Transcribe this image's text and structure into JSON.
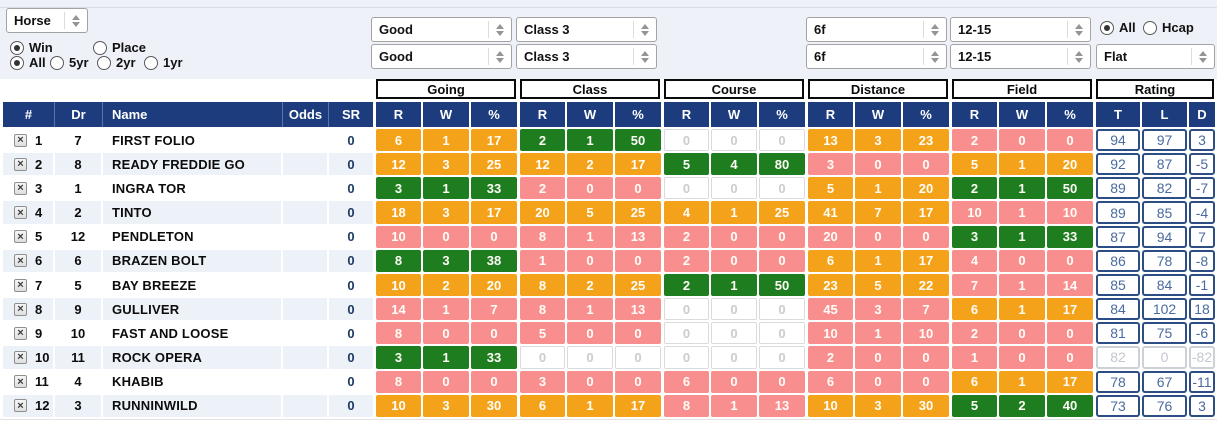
{
  "filters": {
    "horse_select": {
      "value": "Horse"
    },
    "bet_type": {
      "options": [
        "Win",
        "Place"
      ],
      "selected": "Win"
    },
    "age": {
      "options": [
        "All",
        "5yr",
        "2yr",
        "1yr"
      ],
      "selected": "All"
    },
    "going_top": "Good",
    "going_bottom": "Good",
    "class_top": "Class 3",
    "class_bottom": "Class 3",
    "distance_top": "6f",
    "distance_bottom": "6f",
    "field_top": "12-15",
    "field_bottom": "12-15",
    "race_code": {
      "options": [
        "All",
        "Hcap"
      ],
      "selected": "All"
    },
    "race_type": "Flat"
  },
  "table": {
    "remove_glyph": "×",
    "left_headers": [
      "#",
      "Dr",
      "Name",
      "Odds",
      "SR"
    ],
    "groups": [
      {
        "label": "Going",
        "cols": [
          "R",
          "W",
          "%"
        ]
      },
      {
        "label": "Class",
        "cols": [
          "R",
          "W",
          "%"
        ]
      },
      {
        "label": "Course",
        "cols": [
          "R",
          "W",
          "%"
        ]
      },
      {
        "label": "Distance",
        "cols": [
          "R",
          "W",
          "%"
        ]
      },
      {
        "label": "Field",
        "cols": [
          "R",
          "W",
          "%"
        ]
      },
      {
        "label": "Rating",
        "cols": [
          "T",
          "L",
          "D"
        ]
      }
    ],
    "rows": [
      {
        "num": "1",
        "dr": "7",
        "name": "FIRST FOLIO",
        "odds": "",
        "sr": "0",
        "stats": [
          {
            "r": "6",
            "w": "1",
            "pct": "17",
            "color": "orange"
          },
          {
            "r": "2",
            "w": "1",
            "pct": "50",
            "color": "green"
          },
          {
            "r": "0",
            "w": "0",
            "pct": "0",
            "color": "empty"
          },
          {
            "r": "13",
            "w": "3",
            "pct": "23",
            "color": "orange"
          },
          {
            "r": "2",
            "w": "0",
            "pct": "0",
            "color": "pink"
          }
        ],
        "rating": {
          "t": "94",
          "l": "97",
          "d": "3",
          "muted": false
        }
      },
      {
        "num": "2",
        "dr": "8",
        "name": "READY FREDDIE GO",
        "odds": "",
        "sr": "0",
        "stats": [
          {
            "r": "12",
            "w": "3",
            "pct": "25",
            "color": "orange"
          },
          {
            "r": "12",
            "w": "2",
            "pct": "17",
            "color": "orange"
          },
          {
            "r": "5",
            "w": "4",
            "pct": "80",
            "color": "green"
          },
          {
            "r": "3",
            "w": "0",
            "pct": "0",
            "color": "pink"
          },
          {
            "r": "5",
            "w": "1",
            "pct": "20",
            "color": "orange"
          }
        ],
        "rating": {
          "t": "92",
          "l": "87",
          "d": "-5",
          "muted": false
        }
      },
      {
        "num": "3",
        "dr": "1",
        "name": "INGRA TOR",
        "odds": "",
        "sr": "0",
        "stats": [
          {
            "r": "3",
            "w": "1",
            "pct": "33",
            "color": "green"
          },
          {
            "r": "2",
            "w": "0",
            "pct": "0",
            "color": "pink"
          },
          {
            "r": "0",
            "w": "0",
            "pct": "0",
            "color": "empty"
          },
          {
            "r": "5",
            "w": "1",
            "pct": "20",
            "color": "orange"
          },
          {
            "r": "2",
            "w": "1",
            "pct": "50",
            "color": "green"
          }
        ],
        "rating": {
          "t": "89",
          "l": "82",
          "d": "-7",
          "muted": false
        }
      },
      {
        "num": "4",
        "dr": "2",
        "name": "TINTO",
        "odds": "",
        "sr": "0",
        "stats": [
          {
            "r": "18",
            "w": "3",
            "pct": "17",
            "color": "orange"
          },
          {
            "r": "20",
            "w": "5",
            "pct": "25",
            "color": "orange"
          },
          {
            "r": "4",
            "w": "1",
            "pct": "25",
            "color": "orange"
          },
          {
            "r": "41",
            "w": "7",
            "pct": "17",
            "color": "orange"
          },
          {
            "r": "10",
            "w": "1",
            "pct": "10",
            "color": "pink"
          }
        ],
        "rating": {
          "t": "89",
          "l": "85",
          "d": "-4",
          "muted": false
        }
      },
      {
        "num": "5",
        "dr": "12",
        "name": "PENDLETON",
        "odds": "",
        "sr": "0",
        "stats": [
          {
            "r": "10",
            "w": "0",
            "pct": "0",
            "color": "pink"
          },
          {
            "r": "8",
            "w": "1",
            "pct": "13",
            "color": "pink"
          },
          {
            "r": "2",
            "w": "0",
            "pct": "0",
            "color": "pink"
          },
          {
            "r": "20",
            "w": "0",
            "pct": "0",
            "color": "pink"
          },
          {
            "r": "3",
            "w": "1",
            "pct": "33",
            "color": "green"
          }
        ],
        "rating": {
          "t": "87",
          "l": "94",
          "d": "7",
          "muted": false
        }
      },
      {
        "num": "6",
        "dr": "6",
        "name": "BRAZEN BOLT",
        "odds": "",
        "sr": "0",
        "stats": [
          {
            "r": "8",
            "w": "3",
            "pct": "38",
            "color": "green"
          },
          {
            "r": "1",
            "w": "0",
            "pct": "0",
            "color": "pink"
          },
          {
            "r": "2",
            "w": "0",
            "pct": "0",
            "color": "pink"
          },
          {
            "r": "6",
            "w": "1",
            "pct": "17",
            "color": "orange"
          },
          {
            "r": "4",
            "w": "0",
            "pct": "0",
            "color": "pink"
          }
        ],
        "rating": {
          "t": "86",
          "l": "78",
          "d": "-8",
          "muted": false
        }
      },
      {
        "num": "7",
        "dr": "5",
        "name": "BAY BREEZE",
        "odds": "",
        "sr": "0",
        "stats": [
          {
            "r": "10",
            "w": "2",
            "pct": "20",
            "color": "orange"
          },
          {
            "r": "8",
            "w": "2",
            "pct": "25",
            "color": "orange"
          },
          {
            "r": "2",
            "w": "1",
            "pct": "50",
            "color": "green"
          },
          {
            "r": "23",
            "w": "5",
            "pct": "22",
            "color": "orange"
          },
          {
            "r": "7",
            "w": "1",
            "pct": "14",
            "color": "pink"
          }
        ],
        "rating": {
          "t": "85",
          "l": "84",
          "d": "-1",
          "muted": false
        }
      },
      {
        "num": "8",
        "dr": "9",
        "name": "GULLIVER",
        "odds": "",
        "sr": "0",
        "stats": [
          {
            "r": "14",
            "w": "1",
            "pct": "7",
            "color": "pink"
          },
          {
            "r": "8",
            "w": "1",
            "pct": "13",
            "color": "pink"
          },
          {
            "r": "0",
            "w": "0",
            "pct": "0",
            "color": "empty"
          },
          {
            "r": "45",
            "w": "3",
            "pct": "7",
            "color": "pink"
          },
          {
            "r": "6",
            "w": "1",
            "pct": "17",
            "color": "orange"
          }
        ],
        "rating": {
          "t": "84",
          "l": "102",
          "d": "18",
          "muted": false
        }
      },
      {
        "num": "9",
        "dr": "10",
        "name": "FAST AND LOOSE",
        "odds": "",
        "sr": "0",
        "stats": [
          {
            "r": "8",
            "w": "0",
            "pct": "0",
            "color": "pink"
          },
          {
            "r": "5",
            "w": "0",
            "pct": "0",
            "color": "pink"
          },
          {
            "r": "0",
            "w": "0",
            "pct": "0",
            "color": "empty"
          },
          {
            "r": "10",
            "w": "1",
            "pct": "10",
            "color": "pink"
          },
          {
            "r": "2",
            "w": "0",
            "pct": "0",
            "color": "pink"
          }
        ],
        "rating": {
          "t": "81",
          "l": "75",
          "d": "-6",
          "muted": false
        }
      },
      {
        "num": "10",
        "dr": "11",
        "name": "ROCK OPERA",
        "odds": "",
        "sr": "0",
        "stats": [
          {
            "r": "3",
            "w": "1",
            "pct": "33",
            "color": "green"
          },
          {
            "r": "0",
            "w": "0",
            "pct": "0",
            "color": "empty"
          },
          {
            "r": "0",
            "w": "0",
            "pct": "0",
            "color": "empty"
          },
          {
            "r": "2",
            "w": "0",
            "pct": "0",
            "color": "pink"
          },
          {
            "r": "1",
            "w": "0",
            "pct": "0",
            "color": "pink"
          }
        ],
        "rating": {
          "t": "82",
          "l": "0",
          "d": "-82",
          "muted": true
        }
      },
      {
        "num": "11",
        "dr": "4",
        "name": "KHABIB",
        "odds": "",
        "sr": "0",
        "stats": [
          {
            "r": "8",
            "w": "0",
            "pct": "0",
            "color": "pink"
          },
          {
            "r": "3",
            "w": "0",
            "pct": "0",
            "color": "pink"
          },
          {
            "r": "6",
            "w": "0",
            "pct": "0",
            "color": "pink"
          },
          {
            "r": "6",
            "w": "0",
            "pct": "0",
            "color": "pink"
          },
          {
            "r": "6",
            "w": "1",
            "pct": "17",
            "color": "orange"
          }
        ],
        "rating": {
          "t": "78",
          "l": "67",
          "d": "-11",
          "muted": false
        }
      },
      {
        "num": "12",
        "dr": "3",
        "name": "RUNNINWILD",
        "odds": "",
        "sr": "0",
        "stats": [
          {
            "r": "10",
            "w": "3",
            "pct": "30",
            "color": "orange"
          },
          {
            "r": "6",
            "w": "1",
            "pct": "17",
            "color": "orange"
          },
          {
            "r": "8",
            "w": "1",
            "pct": "13",
            "color": "pink"
          },
          {
            "r": "10",
            "w": "3",
            "pct": "30",
            "color": "orange"
          },
          {
            "r": "5",
            "w": "2",
            "pct": "40",
            "color": "green"
          }
        ],
        "rating": {
          "t": "73",
          "l": "76",
          "d": "3",
          "muted": false
        }
      }
    ]
  },
  "colors": {
    "header_navy": "#1c3c7d",
    "cell_orange": "#f5a21b",
    "cell_green": "#1e7d1e",
    "cell_pink": "#f98e8e",
    "row_alt": "#edf1f8",
    "rating_text": "#4a6b9e",
    "rating_border": "#2d4d85",
    "panel_bg": "#eef1f7"
  }
}
